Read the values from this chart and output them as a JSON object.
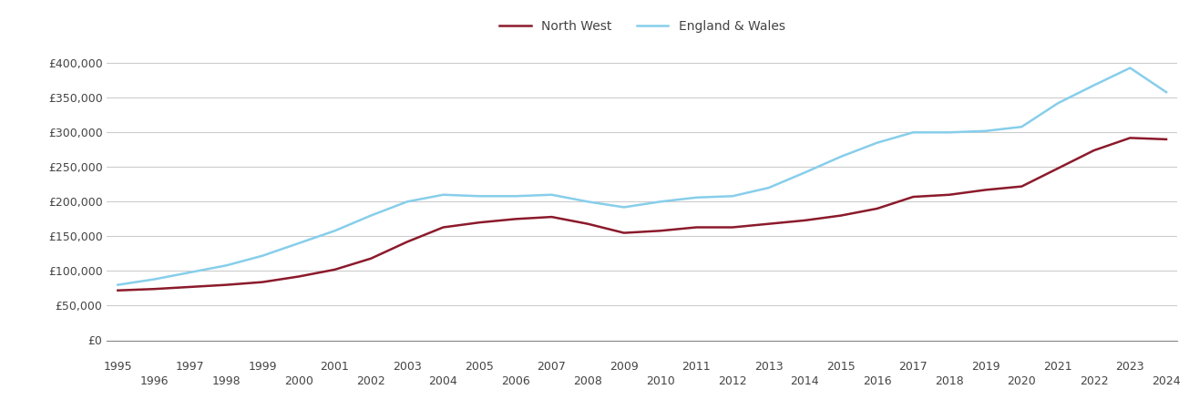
{
  "north_west_years": [
    1995,
    1996,
    1997,
    1998,
    1999,
    2000,
    2001,
    2002,
    2003,
    2004,
    2005,
    2006,
    2007,
    2008,
    2009,
    2010,
    2011,
    2012,
    2013,
    2014,
    2015,
    2016,
    2017,
    2018,
    2019,
    2020,
    2021,
    2022,
    2023,
    2024
  ],
  "north_west_values": [
    72000,
    74000,
    77000,
    80000,
    84000,
    92000,
    102000,
    118000,
    142000,
    163000,
    170000,
    175000,
    178000,
    168000,
    155000,
    158000,
    163000,
    163000,
    168000,
    173000,
    180000,
    190000,
    207000,
    210000,
    217000,
    222000,
    248000,
    274000,
    292000,
    290000
  ],
  "england_wales_years": [
    1995,
    1996,
    1997,
    1998,
    1999,
    2000,
    2001,
    2002,
    2003,
    2004,
    2005,
    2006,
    2007,
    2008,
    2009,
    2010,
    2011,
    2012,
    2013,
    2014,
    2015,
    2016,
    2017,
    2018,
    2019,
    2020,
    2021,
    2022,
    2023,
    2024
  ],
  "england_wales_values": [
    80000,
    88000,
    98000,
    108000,
    122000,
    140000,
    158000,
    180000,
    200000,
    210000,
    208000,
    208000,
    210000,
    200000,
    192000,
    200000,
    206000,
    208000,
    220000,
    242000,
    265000,
    285000,
    300000,
    300000,
    302000,
    308000,
    342000,
    368000,
    393000,
    358000
  ],
  "north_west_color": "#8B1A2B",
  "england_wales_color": "#87CEEB",
  "background_color": "#ffffff",
  "grid_color": "#cccccc",
  "ylim": [
    0,
    420000
  ],
  "yticks": [
    0,
    50000,
    100000,
    150000,
    200000,
    250000,
    300000,
    350000,
    400000
  ],
  "legend_north_west": "North West",
  "legend_england_wales": "England & Wales",
  "xmin": 1994.7,
  "xmax": 2024.3
}
